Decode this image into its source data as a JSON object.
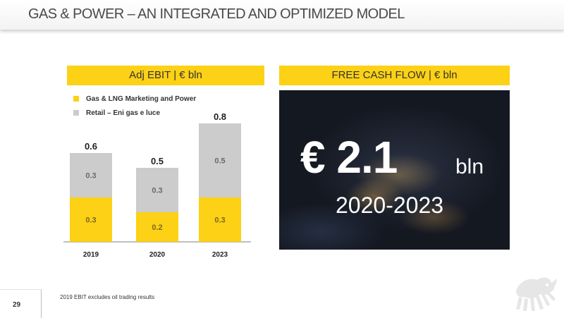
{
  "page": {
    "title": "GAS & POWER – AN INTEGRATED AND OPTIMIZED MODEL",
    "page_number": "29",
    "footnote": "2019 EBIT excludes oil trading results"
  },
  "left_panel": {
    "header": "Adj EBIT | € bln"
  },
  "right_panel": {
    "header": "FREE CASH FLOW | € bln",
    "value": "€ 2.1",
    "unit": "bln",
    "period": "2020-2023"
  },
  "colors": {
    "accent": "#fcd116",
    "retail": "#cccccc",
    "text": "#333333"
  },
  "logo_icon": "eni-six-legged-dog-logo",
  "chart_data": {
    "type": "bar",
    "stacked": true,
    "categories": [
      "2019",
      "2020",
      "2023"
    ],
    "series": [
      {
        "name": "Gas & LNG Marketing and Power",
        "values": [
          0.3,
          0.2,
          0.3
        ],
        "labels": [
          "0.3",
          "0.2",
          "0.3"
        ],
        "color": "#fcd116"
      },
      {
        "name": "Retail – Eni gas e luce",
        "values": [
          0.3,
          0.3,
          0.5
        ],
        "labels": [
          "0.3",
          "0.3",
          "0.5"
        ],
        "color": "#cccccc"
      }
    ],
    "totals": [
      0.6,
      0.5,
      0.8
    ],
    "total_labels": [
      "0.6",
      "0.5",
      "0.8"
    ],
    "ylim": [
      0,
      0.8
    ],
    "legend_position": "top-left",
    "grid": false
  }
}
